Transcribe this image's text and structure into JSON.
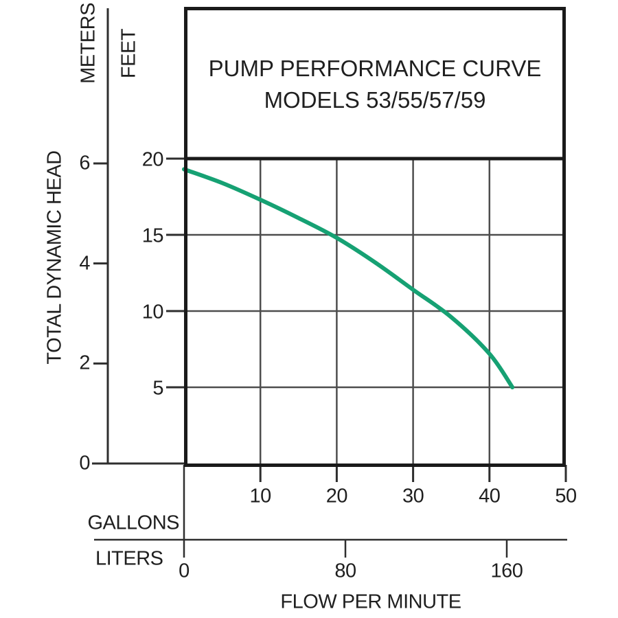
{
  "title": {
    "line1": "PUMP PERFORMANCE CURVE",
    "line2": "MODELS 53/55/57/59"
  },
  "y_axis": {
    "label": "TOTAL DYNAMIC HEAD",
    "meters": {
      "unit": "METERS",
      "ticks": [
        6,
        4,
        2,
        0
      ]
    },
    "feet": {
      "unit": "FEET",
      "ticks": [
        20,
        15,
        10,
        5
      ]
    }
  },
  "x_axis": {
    "label": "FLOW PER MINUTE",
    "gallons": {
      "unit": "GALLONS",
      "ticks": [
        10,
        20,
        30,
        40,
        50
      ]
    },
    "liters": {
      "unit": "LITERS",
      "ticks": [
        0,
        80,
        160
      ]
    }
  },
  "colors": {
    "curve": "#16a173",
    "border": "#1a1a1a",
    "grid": "#4d4d4d",
    "axis": "#2e2e2e",
    "text": "#1f1f1f"
  },
  "chart_data": {
    "type": "line",
    "title": "PUMP PERFORMANCE CURVE MODELS 53/55/57/59",
    "xlabel": "FLOW PER MINUTE",
    "ylabel": "TOTAL DYNAMIC HEAD",
    "x_axes": [
      {
        "unit": "GALLONS",
        "range": [
          0,
          50
        ],
        "ticks": [
          10,
          20,
          30,
          40,
          50
        ]
      },
      {
        "unit": "LITERS",
        "range": [
          0,
          189
        ],
        "ticks": [
          0,
          80,
          160
        ]
      }
    ],
    "y_axes": [
      {
        "unit": "FEET",
        "range": [
          0,
          20
        ],
        "ticks": [
          5,
          10,
          15,
          20
        ]
      },
      {
        "unit": "METERS",
        "range": [
          0,
          6.1
        ],
        "ticks": [
          0,
          2,
          4,
          6
        ]
      }
    ],
    "grid": true,
    "legend_position": "none",
    "series": [
      {
        "name": "MODELS 53/55/57/59",
        "color": "#16a173",
        "units": "gallons_vs_feet",
        "points": [
          [
            0,
            19.3
          ],
          [
            5,
            18.4
          ],
          [
            10,
            17.3
          ],
          [
            15,
            16.1
          ],
          [
            20,
            14.8
          ],
          [
            25,
            13.2
          ],
          [
            30,
            11.4
          ],
          [
            35,
            9.6
          ],
          [
            40,
            7.2
          ],
          [
            43,
            5.0
          ]
        ]
      }
    ]
  }
}
